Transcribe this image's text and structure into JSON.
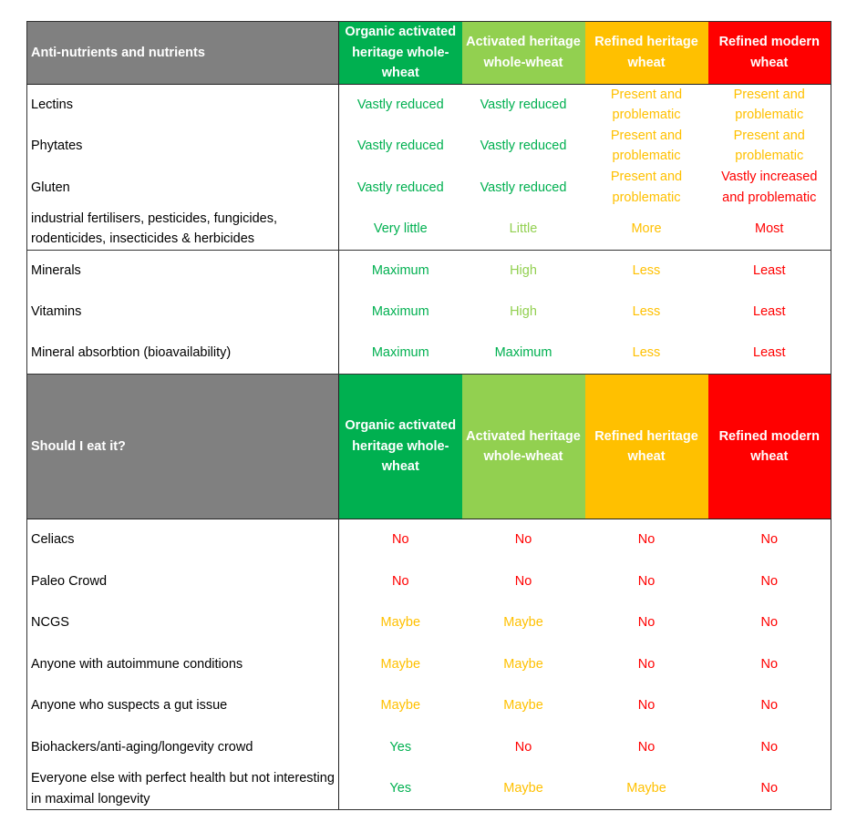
{
  "colors": {
    "dark_green": "#00b050",
    "light_green": "#92d050",
    "amber": "#ffc000",
    "red": "#ff0000",
    "header_gray": "#808080"
  },
  "columns": [
    {
      "label": "Organic activated heritage whole-wheat",
      "color": "#00b050"
    },
    {
      "label": "Activated heritage whole-wheat",
      "color": "#92d050"
    },
    {
      "label": "Refined heritage wheat",
      "color": "#ffc000"
    },
    {
      "label": "Refined modern wheat",
      "color": "#ff0000"
    }
  ],
  "section1": {
    "title": "Anti-nutrients and nutrients",
    "rows": [
      {
        "label": "Lectins",
        "values": [
          [
            "Vastly reduced",
            "#00b050"
          ],
          [
            "Vastly reduced",
            "#00b050"
          ],
          [
            "Present and problematic",
            "#ffc000"
          ],
          [
            "Present and problematic",
            "#ffc000"
          ]
        ]
      },
      {
        "label": "Phytates",
        "values": [
          [
            "Vastly reduced",
            "#00b050"
          ],
          [
            "Vastly reduced",
            "#00b050"
          ],
          [
            "Present and problematic",
            "#ffc000"
          ],
          [
            "Present and problematic",
            "#ffc000"
          ]
        ]
      },
      {
        "label": "Gluten",
        "values": [
          [
            "Vastly reduced",
            "#00b050"
          ],
          [
            "Vastly reduced",
            "#00b050"
          ],
          [
            "Present and problematic",
            "#ffc000"
          ],
          [
            "Vastly increased and problematic",
            "#ff0000"
          ]
        ]
      },
      {
        "label": "industrial fertilisers, pesticides, fungicides, rodenticides, insecticides & herbicides",
        "values": [
          [
            "Very little",
            "#00b050"
          ],
          [
            "Little",
            "#92d050"
          ],
          [
            "More",
            "#ffc000"
          ],
          [
            "Most",
            "#ff0000"
          ]
        ],
        "end": true
      },
      {
        "label": "Minerals",
        "values": [
          [
            "Maximum",
            "#00b050"
          ],
          [
            "High",
            "#92d050"
          ],
          [
            "Less",
            "#ffc000"
          ],
          [
            "Least",
            "#ff0000"
          ]
        ]
      },
      {
        "label": "Vitamins",
        "values": [
          [
            "Maximum",
            "#00b050"
          ],
          [
            "High",
            "#92d050"
          ],
          [
            "Less",
            "#ffc000"
          ],
          [
            "Least",
            "#ff0000"
          ]
        ]
      },
      {
        "label": "Mineral absorbtion (bioavailability)",
        "values": [
          [
            "Maximum",
            "#00b050"
          ],
          [
            "Maximum",
            "#00b050"
          ],
          [
            "Less",
            "#ffc000"
          ],
          [
            "Least",
            "#ff0000"
          ]
        ]
      }
    ]
  },
  "section2": {
    "title": "Should I eat it?",
    "rows": [
      {
        "label": "Celiacs",
        "values": [
          [
            "No",
            "#ff0000"
          ],
          [
            "No",
            "#ff0000"
          ],
          [
            "No",
            "#ff0000"
          ],
          [
            "No",
            "#ff0000"
          ]
        ]
      },
      {
        "label": "Paleo Crowd",
        "values": [
          [
            "No",
            "#ff0000"
          ],
          [
            "No",
            "#ff0000"
          ],
          [
            "No",
            "#ff0000"
          ],
          [
            "No",
            "#ff0000"
          ]
        ]
      },
      {
        "label": "NCGS",
        "values": [
          [
            "Maybe",
            "#ffc000"
          ],
          [
            "Maybe",
            "#ffc000"
          ],
          [
            "No",
            "#ff0000"
          ],
          [
            "No",
            "#ff0000"
          ]
        ]
      },
      {
        "label": "Anyone with autoimmune conditions",
        "values": [
          [
            "Maybe",
            "#ffc000"
          ],
          [
            "Maybe",
            "#ffc000"
          ],
          [
            "No",
            "#ff0000"
          ],
          [
            "No",
            "#ff0000"
          ]
        ]
      },
      {
        "label": "Anyone who suspects a gut issue",
        "values": [
          [
            "Maybe",
            "#ffc000"
          ],
          [
            "Maybe",
            "#ffc000"
          ],
          [
            "No",
            "#ff0000"
          ],
          [
            "No",
            "#ff0000"
          ]
        ]
      },
      {
        "label": "Biohackers/anti-aging/longevity crowd",
        "values": [
          [
            "Yes",
            "#00b050"
          ],
          [
            "No",
            "#ff0000"
          ],
          [
            "No",
            "#ff0000"
          ],
          [
            "No",
            "#ff0000"
          ]
        ]
      },
      {
        "label": "Everyone else with perfect health but not interesting in maximal longevity",
        "values": [
          [
            "Yes",
            "#00b050"
          ],
          [
            "Maybe",
            "#ffc000"
          ],
          [
            "Maybe",
            "#ffc000"
          ],
          [
            "No",
            "#ff0000"
          ]
        ]
      }
    ]
  }
}
